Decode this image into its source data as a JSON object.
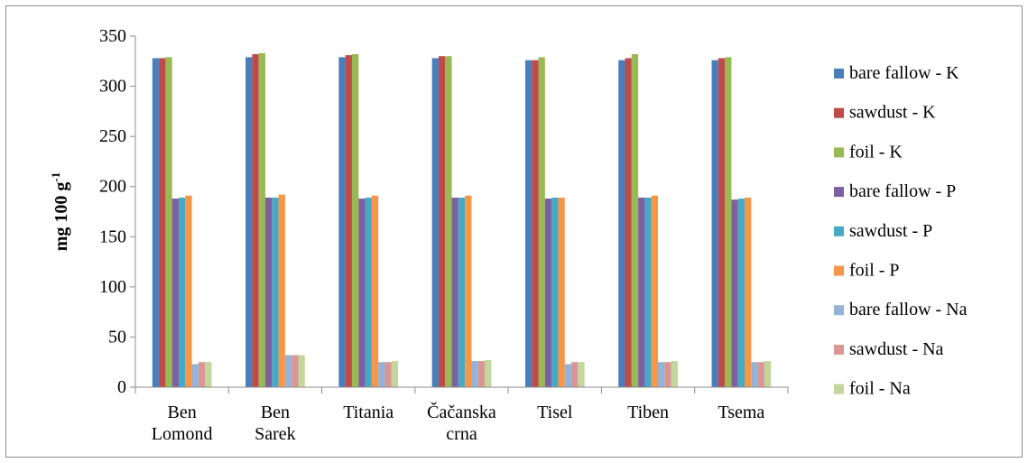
{
  "chart_data": {
    "type": "bar",
    "title": "",
    "xlabel": "",
    "ylabel": "mg 100 g",
    "ylabel_superscript": "-1",
    "ylim": [
      0,
      350
    ],
    "y_ticks": [
      "0",
      "50",
      "100",
      "150",
      "200",
      "250",
      "300",
      "350"
    ],
    "grid": false,
    "legend_position": "right",
    "categories": [
      [
        "Ben",
        "Lomond"
      ],
      [
        "Ben",
        "Sarek"
      ],
      [
        "Titania"
      ],
      [
        "Čačanska",
        "crna"
      ],
      [
        "Tisel"
      ],
      [
        "Tiben"
      ],
      [
        "Tsema"
      ]
    ],
    "series": [
      {
        "name": "bare fallow - K",
        "color": "#4a7ebb",
        "values": [
          328,
          329,
          329,
          328,
          326,
          326,
          326
        ]
      },
      {
        "name": "sawdust - K",
        "color": "#be4b48",
        "values": [
          328,
          332,
          331,
          330,
          326,
          328,
          328
        ]
      },
      {
        "name": "foil - K",
        "color": "#98b954",
        "values": [
          329,
          333,
          332,
          330,
          329,
          332,
          329
        ]
      },
      {
        "name": "bare fallow - P",
        "color": "#7d60a0",
        "values": [
          188,
          189,
          188,
          189,
          188,
          189,
          187
        ]
      },
      {
        "name": "sawdust - P",
        "color": "#46aac5",
        "values": [
          189,
          189,
          189,
          189,
          189,
          189,
          188
        ]
      },
      {
        "name": "foil - P",
        "color": "#f79646",
        "values": [
          191,
          192,
          191,
          191,
          189,
          191,
          189
        ]
      },
      {
        "name": "bare fallow - Na",
        "color": "#95b3d7",
        "values": [
          23,
          32,
          25,
          26,
          23,
          25,
          25
        ]
      },
      {
        "name": "sawdust - Na",
        "color": "#d99694",
        "values": [
          25,
          32,
          25,
          26,
          25,
          25,
          25
        ]
      },
      {
        "name": "foil - Na",
        "color": "#c3d69b",
        "values": [
          25,
          32,
          26,
          27,
          25,
          26,
          26
        ]
      }
    ]
  }
}
